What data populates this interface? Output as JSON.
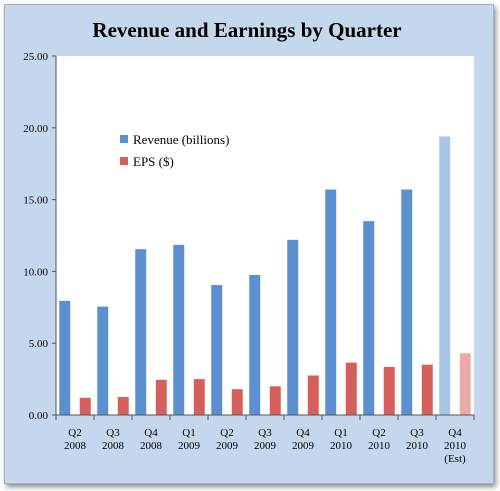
{
  "chart_data": {
    "type": "bar",
    "title": "Revenue and Earnings by Quarter",
    "xlabel": "",
    "ylabel": "",
    "ylim": [
      0,
      25
    ],
    "yticks": [
      "0.00",
      "5.00",
      "10.00",
      "15.00",
      "20.00",
      "25.00"
    ],
    "grid": false,
    "legend_position": "upper-left",
    "categories": [
      [
        "Q2",
        "2008"
      ],
      [
        "Q3",
        "2008"
      ],
      [
        "Q4",
        "2008"
      ],
      [
        "Q1",
        "2009"
      ],
      [
        "Q2",
        "2009"
      ],
      [
        "Q3",
        "2009"
      ],
      [
        "Q4",
        "2009"
      ],
      [
        "Q1",
        "2010"
      ],
      [
        "Q2",
        "2010"
      ],
      [
        "Q3",
        "2010"
      ],
      [
        "Q4",
        "2010",
        "(Est)"
      ]
    ],
    "series": [
      {
        "name": "Revenue (billions)",
        "color": "#5b8fd0",
        "estimate_color": "#a8c5e6",
        "values": [
          7.95,
          7.55,
          11.55,
          11.85,
          9.05,
          9.75,
          12.2,
          15.7,
          13.5,
          15.7,
          19.4
        ]
      },
      {
        "name": "EPS ($)",
        "color": "#d55f5b",
        "estimate_color": "#e9aaa8",
        "values": [
          1.2,
          1.25,
          2.45,
          2.5,
          1.8,
          2.0,
          2.75,
          3.65,
          3.35,
          3.5,
          4.3
        ]
      }
    ],
    "estimated_category_index": 10
  }
}
